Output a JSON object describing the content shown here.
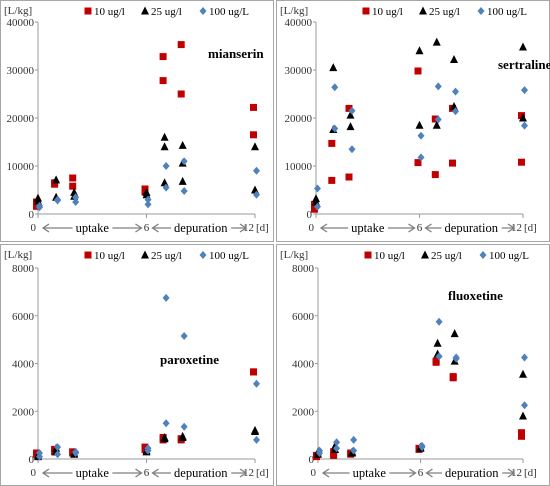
{
  "chart_data": [
    {
      "type": "scatter",
      "title": "mianserin",
      "unit_label": "[L/kg]",
      "x_unit": "[d]",
      "x_ticks": [
        "0",
        "6",
        "12"
      ],
      "x_end_label": "12",
      "ylim": [
        0,
        40000
      ],
      "y_ticks": [
        "0",
        "10000",
        "20000",
        "30000",
        "40000"
      ],
      "phases": [
        "uptake",
        "depuration"
      ],
      "series": [
        {
          "name": "10 ug/l",
          "color": "#c00000",
          "marker": "square",
          "x": [
            0,
            0,
            0,
            1,
            1,
            2,
            2,
            6,
            6,
            7,
            7,
            8,
            8,
            12,
            12
          ],
          "y": [
            1800,
            2500,
            1600,
            6200,
            6500,
            7500,
            5800,
            4600,
            5200,
            32800,
            27800,
            35300,
            25000,
            22200,
            16500
          ]
        },
        {
          "name": "25 ug/l",
          "color": "#000000",
          "marker": "triangle",
          "x": [
            0,
            0,
            1,
            1,
            2,
            2,
            6,
            6,
            7,
            7,
            7,
            8,
            8,
            8,
            12,
            12
          ],
          "y": [
            3300,
            2700,
            7100,
            3500,
            4500,
            3700,
            4000,
            4500,
            16000,
            14000,
            6500,
            14300,
            10600,
            6800,
            14000,
            5000
          ]
        },
        {
          "name": "100 ug/L",
          "color": "#4f81bd",
          "marker": "diamond",
          "x": [
            0,
            0,
            1,
            1,
            2,
            2,
            6,
            6,
            7,
            7,
            8,
            8,
            12,
            12
          ],
          "y": [
            1700,
            1400,
            3000,
            2800,
            3500,
            2500,
            3000,
            2000,
            10000,
            5500,
            11000,
            4800,
            9000,
            4000
          ]
        }
      ]
    },
    {
      "type": "scatter",
      "title": "sertraline",
      "unit_label": "[L/kg]",
      "x_unit": "[d]",
      "x_ticks": [
        "0",
        "6",
        "12"
      ],
      "x_end_label": "12",
      "ylim": [
        0,
        40000
      ],
      "y_ticks": [
        "0",
        "10000",
        "20000",
        "30000",
        "40000"
      ],
      "phases": [
        "uptake",
        "depuration"
      ],
      "series": [
        {
          "name": "10 ug/l",
          "color": "#c00000",
          "marker": "square",
          "x": [
            0,
            0,
            1,
            1,
            2,
            2,
            6,
            6,
            7,
            7,
            8,
            8,
            12,
            12
          ],
          "y": [
            1000,
            2000,
            14700,
            7000,
            22000,
            7700,
            29800,
            10700,
            19800,
            8200,
            22000,
            10600,
            20500,
            10800
          ]
        },
        {
          "name": "25 ug/l",
          "color": "#000000",
          "marker": "triangle",
          "x": [
            0,
            0,
            1,
            1,
            2,
            2,
            6,
            6,
            7,
            7,
            8,
            8,
            12,
            12
          ],
          "y": [
            2500,
            3200,
            30500,
            17600,
            20600,
            18200,
            34000,
            18500,
            35800,
            18500,
            32200,
            22400,
            34800,
            20000
          ]
        },
        {
          "name": "100 ug/L",
          "color": "#4f81bd",
          "marker": "diamond",
          "x": [
            0,
            0,
            1,
            1,
            2,
            2,
            6,
            6,
            7,
            7,
            8,
            8,
            12,
            12
          ],
          "y": [
            5300,
            1500,
            26400,
            17800,
            21500,
            13500,
            16300,
            11800,
            26600,
            19700,
            25500,
            21400,
            25800,
            18400
          ]
        }
      ]
    },
    {
      "type": "scatter",
      "title": "paroxetine",
      "unit_label": "[L/kg]",
      "x_unit": "[d]",
      "x_ticks": [
        "0",
        "6",
        "12"
      ],
      "x_end_label": "12",
      "ylim": [
        0,
        8000
      ],
      "y_ticks": [
        "0",
        "2000",
        "4000",
        "6000",
        "8000"
      ],
      "phases": [
        "uptake",
        "depuration"
      ],
      "series": [
        {
          "name": "10 ug/l",
          "color": "#c00000",
          "marker": "square",
          "x": [
            0,
            0,
            1,
            1,
            2,
            2,
            6,
            6,
            7,
            7,
            8,
            8,
            12,
            12
          ],
          "y": [
            250,
            200,
            400,
            300,
            300,
            250,
            500,
            400,
            900,
            800,
            800,
            850,
            3650,
            3650
          ]
        },
        {
          "name": "25 ug/l",
          "color": "#000000",
          "marker": "triangle",
          "x": [
            0,
            0,
            1,
            1,
            2,
            2,
            6,
            6,
            7,
            7,
            8,
            8,
            12,
            12
          ],
          "y": [
            150,
            100,
            450,
            300,
            250,
            200,
            350,
            300,
            900,
            850,
            950,
            900,
            1200,
            1150
          ]
        },
        {
          "name": "100 ug/L",
          "color": "#4f81bd",
          "marker": "diamond",
          "x": [
            0,
            0,
            1,
            1,
            2,
            2,
            6,
            6,
            7,
            7,
            8,
            8,
            12,
            12
          ],
          "y": [
            250,
            100,
            500,
            200,
            300,
            250,
            450,
            350,
            6750,
            1500,
            5150,
            1350,
            3150,
            800
          ]
        }
      ]
    },
    {
      "type": "scatter",
      "title": "fluoxetine",
      "unit_label": "[L/kg]",
      "x_unit": "[d]",
      "x_ticks": [
        "0",
        "6",
        "12"
      ],
      "x_end_label": "12",
      "ylim": [
        0,
        8000
      ],
      "y_ticks": [
        "0",
        "2000",
        "4000",
        "6000",
        "8000"
      ],
      "phases": [
        "uptake",
        "depuration"
      ],
      "series": [
        {
          "name": "10 ug/l",
          "color": "#c00000",
          "marker": "square",
          "x": [
            0,
            0,
            1,
            1,
            2,
            2,
            6,
            6,
            7,
            7,
            8,
            8,
            12,
            12
          ],
          "y": [
            150,
            100,
            300,
            150,
            250,
            200,
            450,
            400,
            4100,
            4050,
            3450,
            3400,
            1100,
            950
          ]
        },
        {
          "name": "25 ug/l",
          "color": "#000000",
          "marker": "triangle",
          "x": [
            0,
            0,
            1,
            1,
            2,
            2,
            6,
            6,
            7,
            7,
            8,
            8,
            12,
            12
          ],
          "y": [
            300,
            200,
            550,
            400,
            300,
            250,
            500,
            450,
            4850,
            4400,
            5250,
            4100,
            3550,
            1800
          ]
        },
        {
          "name": "100 ug/L",
          "color": "#4f81bd",
          "marker": "diamond",
          "x": [
            0,
            0,
            1,
            1,
            2,
            2,
            6,
            6,
            7,
            7,
            8,
            8,
            12,
            12
          ],
          "y": [
            350,
            250,
            700,
            450,
            800,
            350,
            550,
            500,
            5750,
            4300,
            4250,
            4200,
            4250,
            2250
          ]
        }
      ]
    }
  ]
}
